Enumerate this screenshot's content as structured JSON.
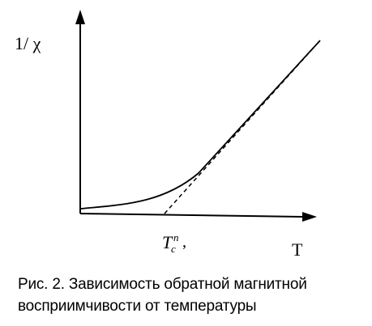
{
  "figure": {
    "y_axis_label": "1/ χ",
    "x_axis_label": "T",
    "tc_label": {
      "main": "T",
      "subscript": "c",
      "superscript": "n",
      "suffix": ","
    },
    "curves": [
      {
        "id": "inverse-susceptibility",
        "style": "solid"
      },
      {
        "id": "curie-weiss-asymptote",
        "style": "dashed"
      }
    ]
  },
  "caption": {
    "line1": "Рис. 2. Зависимость обратной магнитной",
    "line2": "восприимчивости от температуры"
  }
}
